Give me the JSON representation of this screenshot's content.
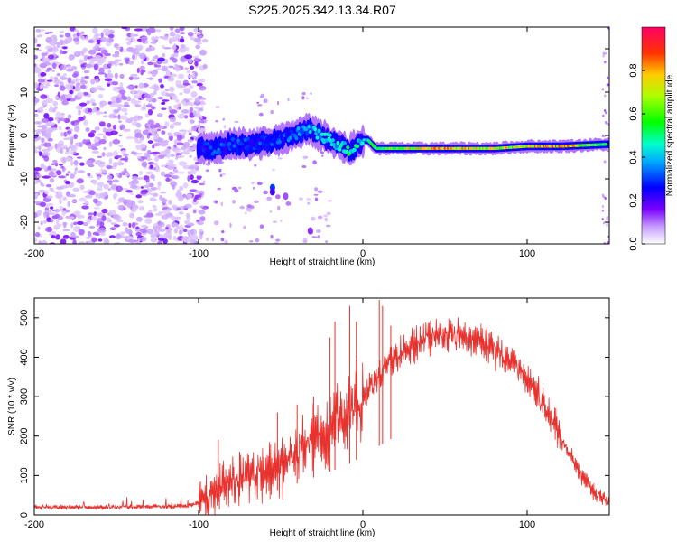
{
  "title": "S225.2025.342.13.34.R07",
  "chart_data": [
    {
      "type": "heatmap",
      "xlabel": "Height of straight line (km)",
      "ylabel": "Frequency (Hz)",
      "xlim": [
        -200,
        150
      ],
      "ylim": [
        -25,
        25
      ],
      "xticks": [
        -200,
        -100,
        0,
        100
      ],
      "yticks": [
        -20,
        -10,
        0,
        10,
        20
      ],
      "colorbar": {
        "label": "Normalized spectral amplitude",
        "range": [
          0,
          1
        ],
        "ticks": [
          "0.0",
          "0.2",
          "0.4",
          "0.6",
          "0.8"
        ],
        "tick_values": [
          0,
          0.2,
          0.4,
          0.6,
          0.8
        ]
      },
      "noise_region_x": [
        -200,
        -100
      ],
      "ridge": {
        "x": [
          -100,
          -90,
          -80,
          -70,
          -60,
          -50,
          -40,
          -33,
          -25,
          -15,
          -8,
          -3,
          0,
          3,
          8,
          20,
          40,
          60,
          80,
          100,
          120,
          150
        ],
        "freq": [
          -3,
          -3,
          -2,
          -2,
          -1.5,
          -1,
          0.5,
          1.5,
          0,
          -2,
          -3.5,
          -2,
          -1,
          -1,
          -3,
          -3,
          -3,
          -3,
          -3,
          -2.5,
          -2.5,
          -2
        ],
        "amplitude": [
          0.25,
          0.3,
          0.3,
          0.3,
          0.3,
          0.3,
          0.35,
          0.4,
          0.4,
          0.45,
          0.5,
          0.5,
          0.45,
          0.5,
          0.55,
          0.65,
          0.8,
          0.8,
          0.7,
          0.75,
          0.85,
          0.5
        ]
      }
    },
    {
      "type": "line",
      "xlabel": "Height of straight line (km)",
      "ylabel": "SNR (10 * v/v)",
      "xlim": [
        -200,
        150
      ],
      "ylim": [
        0,
        550
      ],
      "xticks": [
        -200,
        -100,
        0,
        100
      ],
      "yticks": [
        0,
        100,
        200,
        300,
        400,
        500
      ],
      "color": "#e8322e",
      "envelope": {
        "x": [
          -200,
          -150,
          -110,
          -100,
          -90,
          -80,
          -70,
          -60,
          -50,
          -40,
          -30,
          -20,
          -10,
          0,
          10,
          20,
          30,
          40,
          50,
          60,
          70,
          80,
          90,
          100,
          110,
          120,
          130,
          140,
          150
        ],
        "y": [
          20,
          20,
          22,
          30,
          60,
          90,
          100,
          110,
          130,
          160,
          190,
          220,
          250,
          300,
          350,
          400,
          430,
          450,
          455,
          450,
          440,
          420,
          390,
          340,
          280,
          200,
          120,
          60,
          30
        ]
      },
      "spikes": [
        {
          "x": -88,
          "y": 190
        },
        {
          "x": -75,
          "y": 160
        },
        {
          "x": -52,
          "y": 260
        },
        {
          "x": -40,
          "y": 280
        },
        {
          "x": -30,
          "y": 300
        },
        {
          "x": -20,
          "y": 450
        },
        {
          "x": -17,
          "y": 490
        },
        {
          "x": -8,
          "y": 530
        },
        {
          "x": -4,
          "y": 490
        },
        {
          "x": 10,
          "y": 545
        },
        {
          "x": 12,
          "y": 530
        },
        {
          "x": 17,
          "y": 480
        }
      ]
    }
  ]
}
